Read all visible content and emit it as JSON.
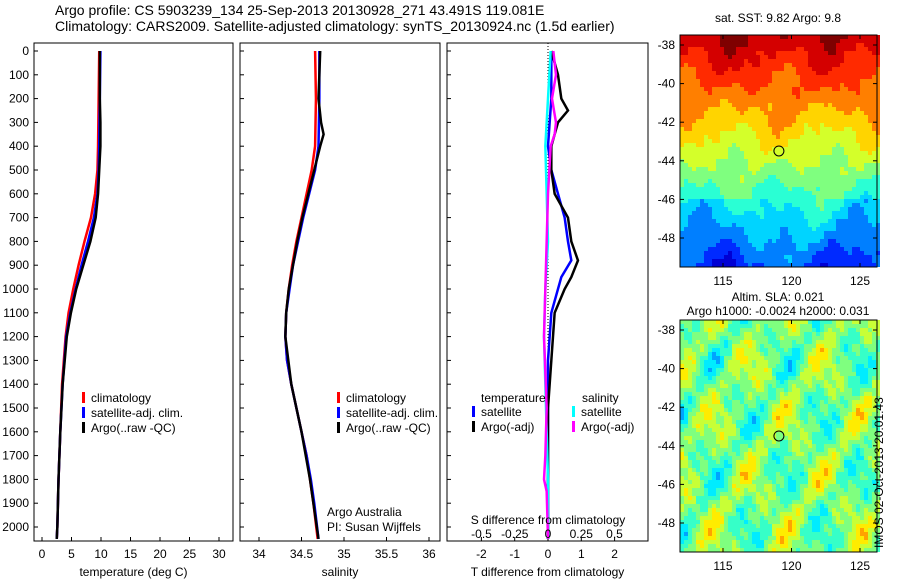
{
  "title_line1": "Argo profile: CS 5903239_134 25-Sep-2013 20130928_271 43.491S 119.081E",
  "title_line2": "Climatology: CARS2009. Satellite-adjusted climatology: synTS_20130924.nc (1.5d earlier)",
  "side_stamp": "IMOS 02-Oct-2013 20:01:43",
  "colors": {
    "clim": "#ff0000",
    "sat": "#0000ff",
    "argo": "#000000",
    "sal_sat": "#00ffff",
    "sal_argo": "#ff00ff"
  },
  "chart_data": [
    {
      "type": "line",
      "xlabel": "temperature (deg C)",
      "ylabel": "",
      "xlim": [
        -1.5,
        32
      ],
      "ylim": [
        2060,
        0
      ],
      "xticks": [
        "0",
        "5",
        "10",
        "15",
        "20",
        "25",
        "30"
      ],
      "xtickvals": [
        0,
        5,
        10,
        15,
        20,
        25,
        30
      ],
      "yticks": [
        "0",
        "100",
        "200",
        "300",
        "400",
        "500",
        "600",
        "700",
        "800",
        "900",
        "1000",
        "1100",
        "1200",
        "1300",
        "1400",
        "1500",
        "1600",
        "1700",
        "1800",
        "1900",
        "2000"
      ],
      "legend": [
        "climatology",
        "satellite-adj. clim.",
        "Argo(..raw -QC)"
      ],
      "series": [
        {
          "name": "climatology",
          "color": "clim",
          "depth": [
            0,
            200,
            400,
            500,
            600,
            700,
            800,
            900,
            1000,
            1100,
            1200,
            1400,
            1600,
            1800,
            2000,
            2050
          ],
          "values": [
            9.7,
            9.6,
            9.5,
            9.4,
            9.0,
            8.3,
            7.2,
            6.2,
            5.3,
            4.5,
            4.0,
            3.4,
            3.1,
            2.8,
            2.6,
            2.5
          ]
        },
        {
          "name": "satellite-adj. clim.",
          "color": "sat",
          "depth": [
            0,
            200,
            400,
            500,
            600,
            700,
            800,
            900,
            1000,
            1100,
            1200,
            1400,
            1600,
            1800,
            2000,
            2050
          ],
          "values": [
            9.9,
            9.8,
            9.7,
            9.6,
            9.4,
            8.8,
            7.8,
            6.7,
            5.7,
            4.8,
            4.1,
            3.5,
            3.1,
            2.8,
            2.6,
            2.5
          ]
        },
        {
          "name": "Argo(..raw -QC)",
          "color": "argo",
          "depth": [
            0,
            100,
            200,
            300,
            400,
            500,
            600,
            700,
            800,
            900,
            1000,
            1100,
            1200,
            1400,
            1600,
            1800,
            2000,
            2050
          ],
          "values": [
            9.8,
            9.8,
            9.8,
            9.9,
            9.9,
            9.7,
            9.5,
            9.1,
            8.2,
            7.0,
            5.8,
            4.9,
            4.2,
            3.5,
            3.1,
            2.8,
            2.6,
            2.5
          ]
        }
      ]
    },
    {
      "type": "line",
      "xlabel": "salinity",
      "xlim": [
        33.77,
        36.1
      ],
      "ylim": [
        2060,
        0
      ],
      "xticks": [
        "34",
        "34.5",
        "35",
        "35.5",
        "36"
      ],
      "xtickvals": [
        34,
        34.5,
        35,
        35.5,
        36
      ],
      "legend": [
        "climatology",
        "satellite-adj. clim.",
        "Argo(..raw -QC)"
      ],
      "annotation": [
        "Argo Australia",
        "PI: Susan Wijffels"
      ],
      "series": [
        {
          "name": "climatology",
          "color": "clim",
          "depth": [
            0,
            200,
            400,
            500,
            600,
            700,
            800,
            900,
            1000,
            1100,
            1200,
            1300,
            1400,
            1500,
            1600,
            1700,
            1800,
            1900,
            2050
          ],
          "values": [
            34.66,
            34.67,
            34.66,
            34.62,
            34.56,
            34.5,
            34.44,
            34.39,
            34.35,
            34.32,
            34.31,
            34.33,
            34.38,
            34.44,
            34.5,
            34.56,
            34.6,
            34.64,
            34.69
          ]
        },
        {
          "name": "satellite-adj. clim.",
          "color": "sat",
          "depth": [
            0,
            200,
            400,
            500,
            600,
            700,
            800,
            900,
            1000,
            1100,
            1200,
            1300,
            1400,
            1500,
            1600,
            1700,
            1800,
            1900,
            2050
          ],
          "values": [
            34.71,
            34.71,
            34.7,
            34.66,
            34.59,
            34.52,
            34.46,
            34.4,
            34.36,
            34.32,
            34.31,
            34.33,
            34.38,
            34.44,
            34.5,
            34.56,
            34.61,
            34.65,
            34.7
          ]
        },
        {
          "name": "Argo(..raw -QC)",
          "color": "argo",
          "depth": [
            0,
            100,
            200,
            300,
            350,
            400,
            500,
            600,
            700,
            800,
            900,
            1000,
            1100,
            1200,
            1400,
            1600,
            1800,
            2050
          ],
          "values": [
            34.72,
            34.71,
            34.7,
            34.73,
            34.76,
            34.72,
            34.65,
            34.58,
            34.51,
            34.45,
            34.4,
            34.35,
            34.32,
            34.31,
            34.38,
            34.5,
            34.6,
            34.7
          ]
        }
      ]
    },
    {
      "type": "line",
      "xlabel": "T difference from climatology",
      "xlabel2": "S difference from climatology",
      "xlim": [
        -3,
        3
      ],
      "ylim": [
        2060,
        0
      ],
      "xticks": [
        "-2",
        "-1",
        "0",
        "1",
        "2"
      ],
      "xtickvals": [
        -2,
        -1,
        0,
        1,
        2
      ],
      "x2ticks": [
        "-0.5",
        "-0.25",
        "0",
        "0.25",
        "0.5"
      ],
      "x2tickvals": [
        -0.5,
        -0.25,
        0,
        0.25,
        0.5
      ],
      "legend_temp_title": "temperature",
      "legend_sal_title": "salinity",
      "legend": [
        "satellite",
        "Argo(-adj)",
        "satellite",
        "Argo(-adj)"
      ],
      "series": [
        {
          "name": "T satellite",
          "color": "sat",
          "depth": [
            0,
            200,
            400,
            500,
            600,
            700,
            800,
            880,
            950,
            1100,
            1300,
            1600,
            2050
          ],
          "values": [
            0.1,
            0.1,
            0,
            0.1,
            0.3,
            0.5,
            0.6,
            0.7,
            0.4,
            0.1,
            0,
            0,
            0
          ]
        },
        {
          "name": "T Argo(-adj)",
          "color": "argo",
          "depth": [
            0,
            100,
            200,
            250,
            300,
            400,
            500,
            600,
            700,
            800,
            880,
            950,
            1000,
            1100,
            1300,
            1500,
            1700,
            2050
          ],
          "values": [
            0.1,
            0.3,
            0.4,
            0.6,
            0.3,
            0.1,
            0.1,
            0.2,
            0.6,
            0.7,
            0.9,
            0.7,
            0.5,
            0.2,
            0.1,
            0,
            0,
            0
          ]
        },
        {
          "name": "S satellite",
          "color": "sal_sat",
          "depth": [
            0,
            200,
            400,
            600,
            800,
            1000,
            1200,
            1400,
            1600,
            1800,
            2050
          ],
          "values": [
            0.02,
            0.0,
            -0.02,
            -0.01,
            0.0,
            -0.02,
            -0.03,
            -0.02,
            -0.01,
            0.0,
            0.0
          ]
        },
        {
          "name": "S Argo(-adj)",
          "color": "sal_argo",
          "depth": [
            0,
            100,
            200,
            300,
            350,
            400,
            600,
            800,
            1000,
            1200,
            1500,
            1700,
            1800,
            1850,
            2050
          ],
          "values": [
            0.04,
            0.06,
            0.03,
            0.06,
            0.05,
            0.02,
            0.0,
            -0.01,
            -0.02,
            -0.03,
            -0.01,
            -0.02,
            -0.03,
            -0.01,
            0
          ]
        }
      ]
    },
    {
      "type": "heatmap",
      "title": "sat. SST: 9.82 Argo: 9.8",
      "xticks": [
        "115",
        "120",
        "125"
      ],
      "yticks": [
        "-38",
        "-40",
        "-42",
        "-44",
        "-46",
        "-48"
      ],
      "marker": [
        119.081,
        -43.491
      ]
    },
    {
      "type": "heatmap",
      "title1": "Altim. SLA: 0.021",
      "title2": "Argo h1000: -0.0024 h2000: 0.031",
      "xticks": [
        "115",
        "120",
        "125"
      ],
      "yticks": [
        "-38",
        "-40",
        "-42",
        "-44",
        "-46",
        "-48"
      ],
      "marker": [
        119.081,
        -43.491
      ]
    }
  ]
}
